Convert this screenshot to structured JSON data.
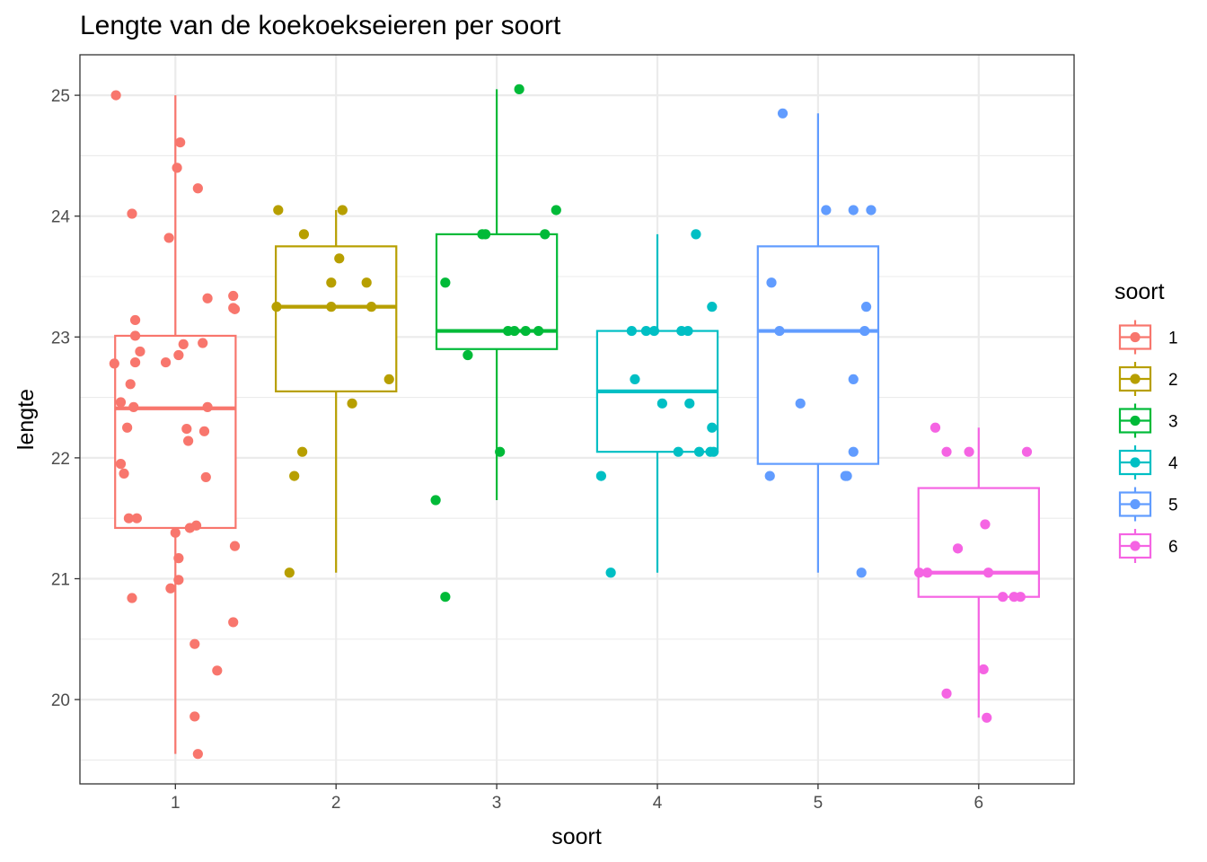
{
  "chart_data": {
    "type": "boxplot",
    "title": "Lengte van de koekoekseieren per soort",
    "xlabel": "soort",
    "ylabel": "lengte",
    "categories": [
      "1",
      "2",
      "3",
      "4",
      "5",
      "6"
    ],
    "ylim": [
      19.5,
      25.25
    ],
    "yticks": [
      20,
      21,
      22,
      23,
      24,
      25
    ],
    "grid": true,
    "legend": {
      "title": "soort",
      "position": "right"
    },
    "colors": [
      "#F8766D",
      "#B79F00",
      "#00BA38",
      "#00BFC4",
      "#619CFF",
      "#F564E3"
    ],
    "boxes": [
      {
        "category": "1",
        "lower_whisker": 19.55,
        "q1": 21.42,
        "median": 22.41,
        "q3": 23.01,
        "upper_whisker": 25.0
      },
      {
        "category": "2",
        "lower_whisker": 21.05,
        "q1": 22.55,
        "median": 23.25,
        "q3": 23.75,
        "upper_whisker": 24.05
      },
      {
        "category": "3",
        "lower_whisker": 21.65,
        "q1": 22.9,
        "median": 23.05,
        "q3": 23.85,
        "upper_whisker": 25.05
      },
      {
        "category": "4",
        "lower_whisker": 21.05,
        "q1": 22.05,
        "median": 22.55,
        "q3": 23.05,
        "upper_whisker": 23.85
      },
      {
        "category": "5",
        "lower_whisker": 21.05,
        "q1": 21.95,
        "median": 23.05,
        "q3": 23.75,
        "upper_whisker": 24.85
      },
      {
        "category": "6",
        "lower_whisker": 19.85,
        "q1": 20.85,
        "median": 21.05,
        "q3": 21.75,
        "upper_whisker": 22.25
      }
    ],
    "points": [
      {
        "category": "1",
        "values": [
          [
            0.63,
            25.0
          ],
          [
            1.03,
            24.61
          ],
          [
            1.01,
            24.4
          ],
          [
            1.14,
            24.23
          ],
          [
            0.73,
            24.02
          ],
          [
            0.96,
            23.82
          ],
          [
            1.2,
            23.32
          ],
          [
            1.36,
            23.34
          ],
          [
            1.36,
            23.24
          ],
          [
            1.37,
            23.23
          ],
          [
            0.75,
            23.14
          ],
          [
            0.75,
            23.01
          ],
          [
            1.05,
            22.94
          ],
          [
            1.17,
            22.95
          ],
          [
            0.78,
            22.88
          ],
          [
            1.02,
            22.85
          ],
          [
            0.62,
            22.78
          ],
          [
            0.75,
            22.79
          ],
          [
            0.94,
            22.79
          ],
          [
            0.72,
            22.61
          ],
          [
            0.66,
            22.46
          ],
          [
            0.74,
            22.42
          ],
          [
            1.2,
            22.42
          ],
          [
            0.7,
            22.25
          ],
          [
            1.07,
            22.24
          ],
          [
            1.18,
            22.22
          ],
          [
            1.08,
            22.14
          ],
          [
            0.66,
            21.95
          ],
          [
            0.68,
            21.87
          ],
          [
            1.19,
            21.84
          ],
          [
            0.71,
            21.5
          ],
          [
            0.76,
            21.5
          ],
          [
            1.13,
            21.44
          ],
          [
            1.09,
            21.42
          ],
          [
            1.0,
            21.38
          ],
          [
            1.37,
            21.27
          ],
          [
            1.02,
            21.17
          ],
          [
            1.02,
            20.99
          ],
          [
            0.97,
            20.92
          ],
          [
            0.73,
            20.84
          ],
          [
            1.36,
            20.64
          ],
          [
            1.12,
            20.46
          ],
          [
            1.26,
            20.24
          ],
          [
            1.12,
            19.86
          ],
          [
            1.14,
            19.55
          ]
        ]
      },
      {
        "category": "2",
        "values": [
          [
            1.64,
            24.05
          ],
          [
            2.04,
            24.05
          ],
          [
            1.8,
            23.85
          ],
          [
            2.02,
            23.65
          ],
          [
            1.63,
            23.25
          ],
          [
            1.97,
            23.45
          ],
          [
            2.19,
            23.45
          ],
          [
            1.97,
            23.25
          ],
          [
            2.22,
            23.25
          ],
          [
            2.33,
            22.65
          ],
          [
            2.1,
            22.45
          ],
          [
            1.79,
            22.05
          ],
          [
            1.74,
            21.85
          ],
          [
            1.71,
            21.05
          ]
        ]
      },
      {
        "category": "3",
        "values": [
          [
            3.14,
            25.05
          ],
          [
            3.37,
            24.05
          ],
          [
            2.91,
            23.85
          ],
          [
            2.93,
            23.85
          ],
          [
            3.3,
            23.85
          ],
          [
            2.68,
            23.45
          ],
          [
            3.07,
            23.05
          ],
          [
            3.11,
            23.05
          ],
          [
            3.18,
            23.05
          ],
          [
            3.26,
            23.05
          ],
          [
            2.82,
            22.85
          ],
          [
            3.02,
            22.05
          ],
          [
            2.62,
            21.65
          ],
          [
            2.68,
            20.85
          ]
        ]
      },
      {
        "category": "4",
        "values": [
          [
            4.24,
            23.85
          ],
          [
            3.84,
            23.05
          ],
          [
            3.93,
            23.05
          ],
          [
            3.98,
            23.05
          ],
          [
            4.15,
            23.05
          ],
          [
            4.19,
            23.05
          ],
          [
            4.34,
            23.25
          ],
          [
            3.86,
            22.65
          ],
          [
            4.03,
            22.45
          ],
          [
            4.2,
            22.45
          ],
          [
            4.34,
            22.25
          ],
          [
            4.13,
            22.05
          ],
          [
            4.26,
            22.05
          ],
          [
            4.33,
            22.05
          ],
          [
            4.35,
            22.05
          ],
          [
            3.65,
            21.85
          ],
          [
            3.71,
            21.05
          ]
        ]
      },
      {
        "category": "5",
        "values": [
          [
            4.78,
            24.85
          ],
          [
            5.05,
            24.05
          ],
          [
            5.22,
            24.05
          ],
          [
            5.33,
            24.05
          ],
          [
            4.71,
            23.45
          ],
          [
            4.76,
            23.05
          ],
          [
            5.29,
            23.05
          ],
          [
            5.3,
            23.25
          ],
          [
            5.22,
            22.65
          ],
          [
            4.89,
            22.45
          ],
          [
            5.22,
            22.05
          ],
          [
            4.7,
            21.85
          ],
          [
            5.17,
            21.85
          ],
          [
            5.18,
            21.85
          ],
          [
            5.27,
            21.05
          ]
        ]
      },
      {
        "category": "6",
        "values": [
          [
            5.73,
            22.25
          ],
          [
            5.8,
            22.05
          ],
          [
            5.94,
            22.05
          ],
          [
            6.3,
            22.05
          ],
          [
            6.04,
            21.45
          ],
          [
            5.87,
            21.25
          ],
          [
            5.63,
            21.05
          ],
          [
            5.68,
            21.05
          ],
          [
            6.06,
            21.05
          ],
          [
            6.15,
            20.85
          ],
          [
            6.22,
            20.85
          ],
          [
            6.26,
            20.85
          ],
          [
            6.03,
            20.25
          ],
          [
            5.8,
            20.05
          ],
          [
            6.05,
            19.85
          ]
        ]
      }
    ]
  }
}
